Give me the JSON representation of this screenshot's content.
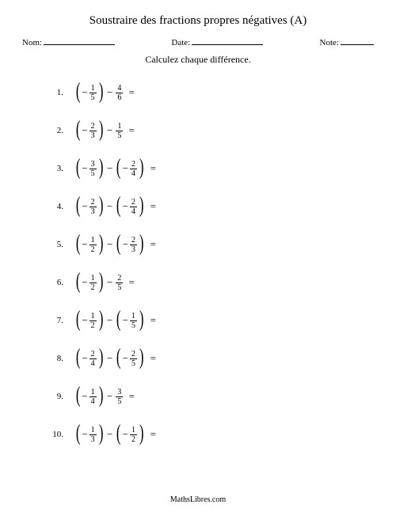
{
  "title": "Soustraire des fractions propres négatives (A)",
  "labels": {
    "name": "Nom:",
    "date": "Date:",
    "grade": "Note:"
  },
  "instruction": "Calculez chaque différence.",
  "footer": "MathsLibres.com",
  "line_widths": {
    "name": 90,
    "date": 90,
    "grade": 42
  },
  "problems": [
    {
      "n": "1.",
      "a_neg": true,
      "a_num": "1",
      "a_den": "5",
      "b_neg": false,
      "b_num": "4",
      "b_den": "6"
    },
    {
      "n": "2.",
      "a_neg": true,
      "a_num": "2",
      "a_den": "3",
      "b_neg": false,
      "b_num": "1",
      "b_den": "5"
    },
    {
      "n": "3.",
      "a_neg": true,
      "a_num": "3",
      "a_den": "5",
      "b_neg": true,
      "b_num": "2",
      "b_den": "4"
    },
    {
      "n": "4.",
      "a_neg": true,
      "a_num": "2",
      "a_den": "3",
      "b_neg": true,
      "b_num": "2",
      "b_den": "4"
    },
    {
      "n": "5.",
      "a_neg": true,
      "a_num": "1",
      "a_den": "2",
      "b_neg": true,
      "b_num": "2",
      "b_den": "3"
    },
    {
      "n": "6.",
      "a_neg": true,
      "a_num": "1",
      "a_den": "2",
      "b_neg": false,
      "b_num": "2",
      "b_den": "5"
    },
    {
      "n": "7.",
      "a_neg": true,
      "a_num": "1",
      "a_den": "2",
      "b_neg": true,
      "b_num": "1",
      "b_den": "5"
    },
    {
      "n": "8.",
      "a_neg": true,
      "a_num": "2",
      "a_den": "4",
      "b_neg": true,
      "b_num": "2",
      "b_den": "5"
    },
    {
      "n": "9.",
      "a_neg": true,
      "a_num": "1",
      "a_den": "4",
      "b_neg": false,
      "b_num": "3",
      "b_den": "5"
    },
    {
      "n": "10.",
      "a_neg": true,
      "a_num": "1",
      "a_den": "3",
      "b_neg": true,
      "b_num": "1",
      "b_den": "2"
    }
  ]
}
